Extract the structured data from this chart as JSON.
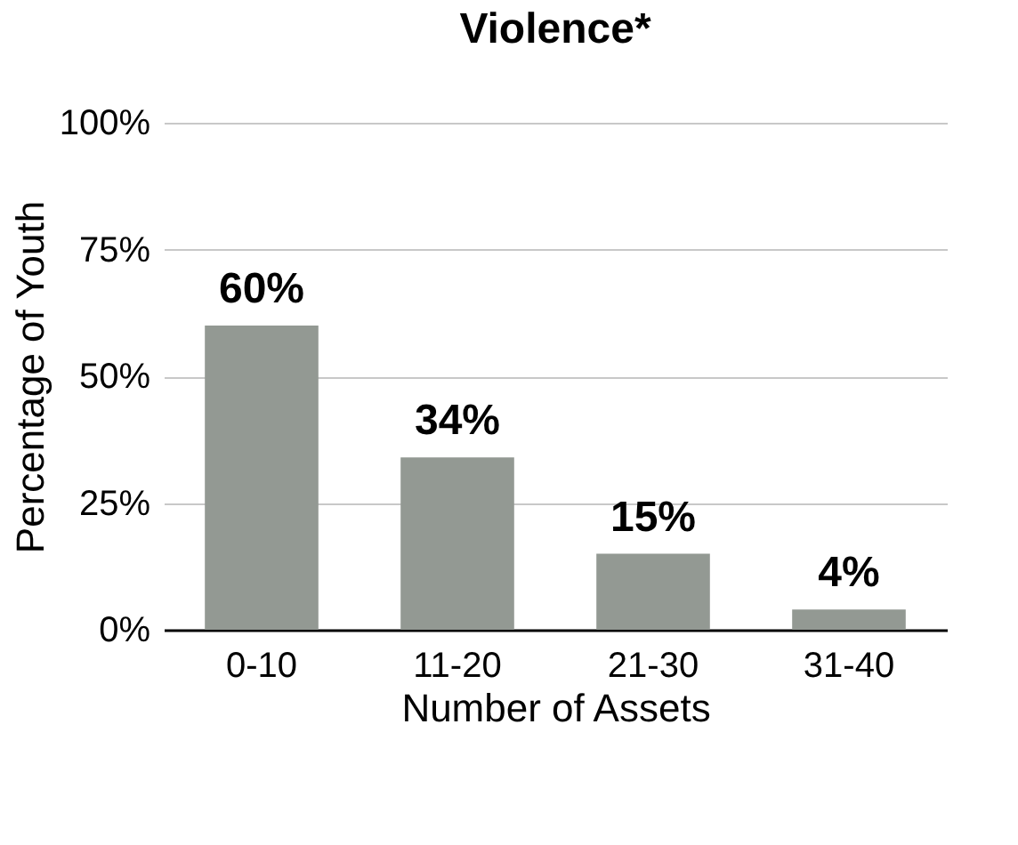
{
  "chart_data": {
    "type": "bar",
    "title": "Violence*",
    "xlabel": "Number of Assets",
    "ylabel": "Percentage of Youth",
    "categories": [
      "0-10",
      "11-20",
      "21-30",
      "31-40"
    ],
    "values": [
      60,
      34,
      15,
      4
    ],
    "value_labels": [
      "60%",
      "34%",
      "15%",
      "4%"
    ],
    "color": "#939993",
    "ylim": [
      0,
      100
    ],
    "yticks": [
      {
        "value": 0,
        "label": "0%"
      },
      {
        "value": 25,
        "label": "25%"
      },
      {
        "value": 50,
        "label": "50%"
      },
      {
        "value": 75,
        "label": "75%"
      },
      {
        "value": 100,
        "label": "100%"
      }
    ],
    "grid": "y"
  }
}
